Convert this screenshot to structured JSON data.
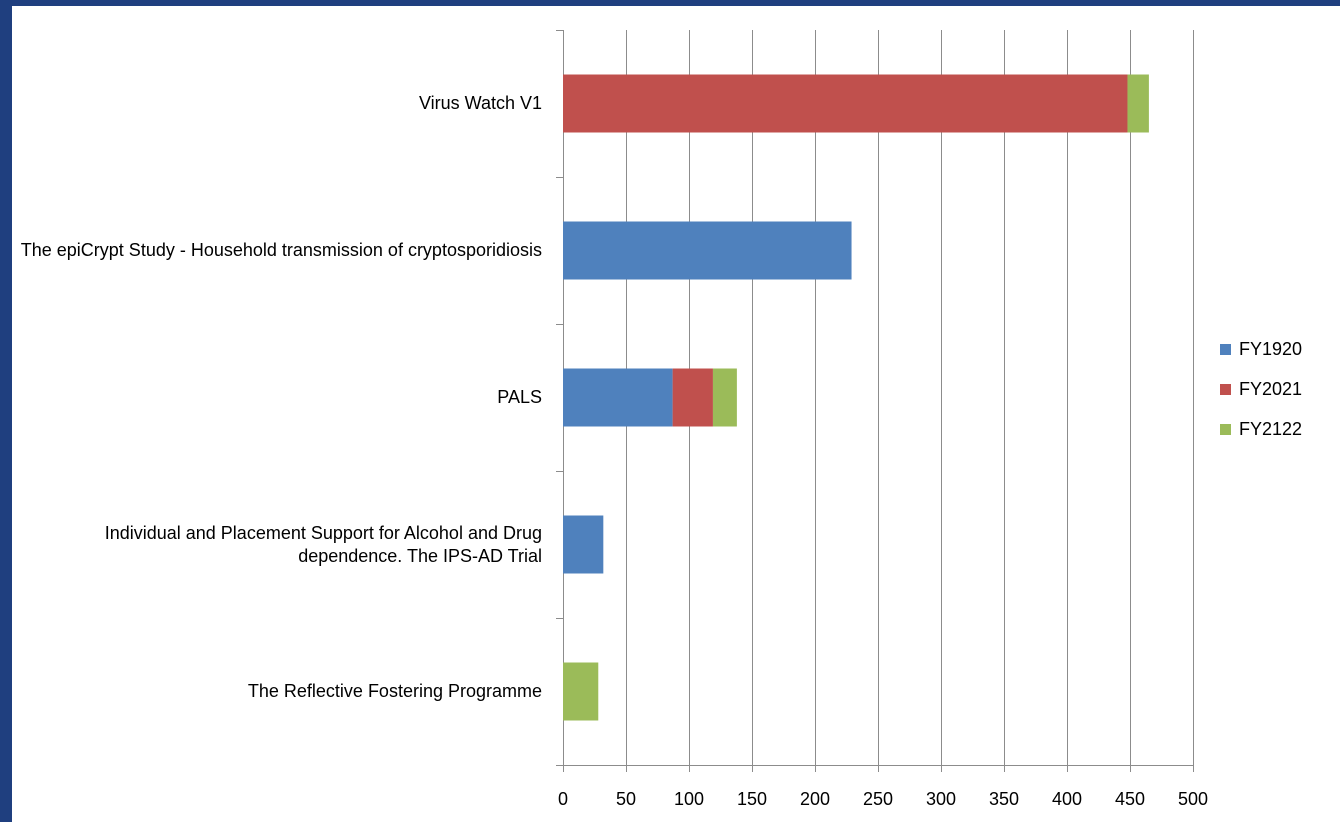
{
  "chart_data": {
    "type": "bar",
    "orientation": "horizontal",
    "stacked": true,
    "title": "",
    "xlabel": "",
    "ylabel": "",
    "categories": [
      "Virus Watch V1",
      "The epiCrypt Study - Household transmission of cryptosporidiosis",
      "PALS",
      "Individual and Placement Support for Alcohol and Drug dependence. The IPS-AD Trial",
      "The Reflective Fostering Programme"
    ],
    "series": [
      {
        "name": "FY1920",
        "color": "#4f81bd",
        "values": [
          0,
          229,
          87,
          32,
          0
        ]
      },
      {
        "name": "FY2021",
        "color": "#c0504d",
        "values": [
          448,
          0,
          32,
          0,
          0
        ]
      },
      {
        "name": "FY2122",
        "color": "#9bbb59",
        "values": [
          17,
          0,
          19,
          0,
          28
        ]
      }
    ],
    "xlim": [
      0,
      500
    ],
    "xticks": [
      "0",
      "50",
      "100",
      "150",
      "200",
      "250",
      "300",
      "350",
      "400",
      "450",
      "500"
    ],
    "grid": "vertical",
    "legend": "right"
  }
}
